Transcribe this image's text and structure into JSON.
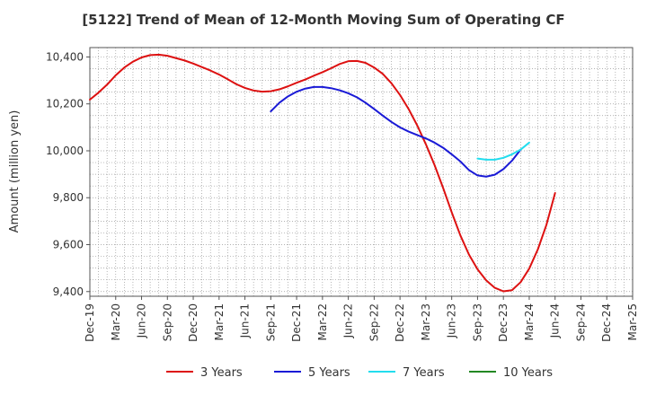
{
  "chart_data": {
    "type": "line",
    "title": "[5122]  Trend of Mean of 12-Month Moving Sum of Operating CF",
    "xlabel": "",
    "ylabel": "Amount (million yen)",
    "ylim": [
      9380,
      10440
    ],
    "y_ticks": [
      9400,
      9600,
      9800,
      10000,
      10200,
      10400
    ],
    "y_tick_labels": [
      "9,400",
      "9,600",
      "9,800",
      "10,000",
      "10,200",
      "10,400"
    ],
    "x_tick_labels": [
      "Dec-19",
      "Mar-20",
      "Jun-20",
      "Sep-20",
      "Dec-20",
      "Mar-21",
      "Jun-21",
      "Sep-21",
      "Dec-21",
      "Mar-22",
      "Jun-22",
      "Sep-22",
      "Dec-22",
      "Mar-23",
      "Jun-23",
      "Sep-23",
      "Dec-23",
      "Mar-24",
      "Jun-24",
      "Sep-24",
      "Dec-24",
      "Mar-25"
    ],
    "x_start": "Dec-19",
    "x_months": 63,
    "grid": true,
    "legend_position": "bottom",
    "series": [
      {
        "name": "3 Years",
        "color": "#dd1111",
        "start": "Dec-19",
        "values": [
          10218,
          10248,
          10282,
          10322,
          10355,
          10380,
          10398,
          10408,
          10410,
          10405,
          10395,
          10385,
          10372,
          10357,
          10342,
          10325,
          10305,
          10284,
          10268,
          10257,
          10252,
          10254,
          10262,
          10275,
          10290,
          10304,
          10320,
          10335,
          10352,
          10370,
          10382,
          10383,
          10375,
          10355,
          10328,
          10288,
          10238,
          10178,
          10108,
          10028,
          9940,
          9842,
          9738,
          9640,
          9558,
          9495,
          9448,
          9416,
          9401,
          9406,
          9440,
          9498,
          9580,
          9685,
          9820
        ]
      },
      {
        "name": "5 Years",
        "color": "#1a1ad6",
        "start": "Sep-21",
        "values": [
          10168,
          10205,
          10232,
          10252,
          10265,
          10272,
          10272,
          10267,
          10258,
          10245,
          10228,
          10205,
          10178,
          10150,
          10123,
          10100,
          10082,
          10067,
          10053,
          10035,
          10013,
          9985,
          9955,
          9918,
          9895,
          9890,
          9898,
          9922,
          9958,
          10005
        ]
      },
      {
        "name": "7 Years",
        "color": "#22ddee",
        "start": "Sep-23",
        "values": [
          9967,
          9962,
          9962,
          9970,
          9985,
          10005,
          10035
        ]
      },
      {
        "name": "10 Years",
        "color": "#228822",
        "start": "Mar-25",
        "values": []
      }
    ]
  }
}
